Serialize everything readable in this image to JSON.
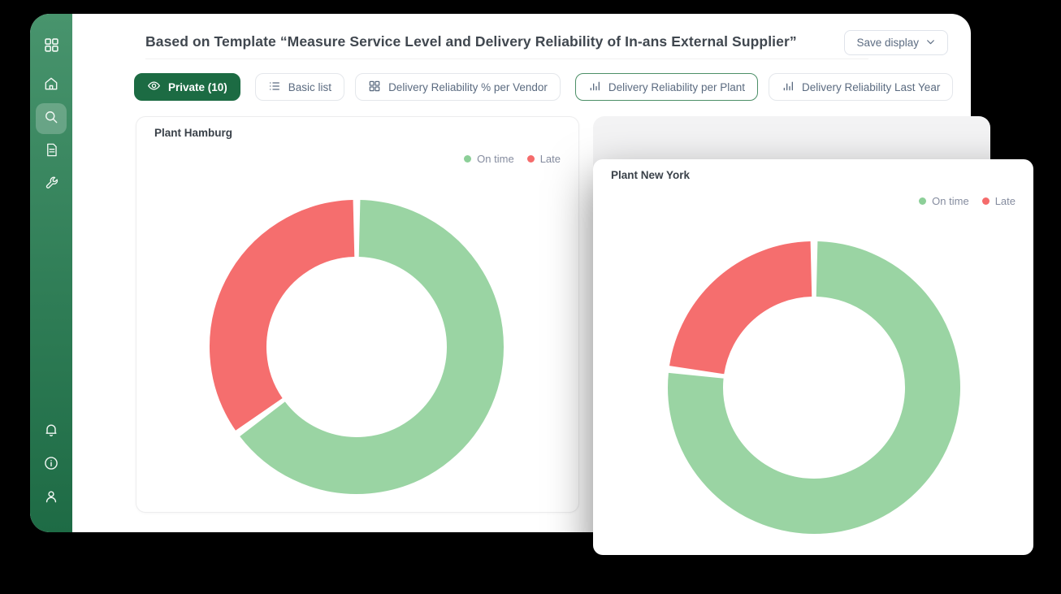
{
  "header": {
    "title": "Based on Template “Measure Service Level and Delivery Reliability of In-ans External Supplier”",
    "save_display_label": "Save display"
  },
  "sidebar": {
    "items": [
      {
        "icon": "apps-grid-icon",
        "active": false
      },
      {
        "icon": "home-icon",
        "active": false
      },
      {
        "icon": "search-icon",
        "active": true
      },
      {
        "icon": "document-icon",
        "active": false
      },
      {
        "icon": "wrench-icon",
        "active": false
      },
      {
        "icon": "bell-icon",
        "active": false
      },
      {
        "icon": "info-icon",
        "active": false
      },
      {
        "icon": "user-icon",
        "active": false
      }
    ]
  },
  "filters": {
    "private_label": "Private (10)",
    "tabs": [
      {
        "label": "Basic list",
        "icon": "list-icon",
        "selected": false
      },
      {
        "label": "Delivery Reliability % per Vendor",
        "icon": "grid-icon",
        "selected": false
      },
      {
        "label": "Delivery Reliability per Plant",
        "icon": "bar-chart-icon",
        "selected": true
      },
      {
        "label": "Delivery Reliability Last Year",
        "icon": "bar-chart-icon",
        "selected": false
      }
    ]
  },
  "colors": {
    "sidebar_green_top": "#48946d",
    "sidebar_green_bottom": "#1e6b45",
    "private_pill": "#1c6b43",
    "selected_tab_border": "#4c8f67",
    "on_time_green": "#9ad4a3",
    "late_red": "#f56e6e",
    "legend_text": "#858c9f"
  },
  "chart_data": [
    {
      "type": "pie",
      "donut": true,
      "title": "Plant Hamburg",
      "labels": [
        "On time",
        "Late"
      ],
      "values": [
        65,
        35
      ],
      "units": "percent (estimated from arc angles)",
      "colors": [
        "#9ad4a3",
        "#f56e6e"
      ],
      "legend_position": "top-right",
      "start_angle_deg": 0,
      "direction": "clockwise"
    },
    {
      "type": "pie",
      "donut": true,
      "title": "Plant New York",
      "labels": [
        "On time",
        "Late"
      ],
      "values": [
        77,
        23
      ],
      "units": "percent (estimated from arc angles)",
      "colors": [
        "#9ad4a3",
        "#f56e6e"
      ],
      "legend_position": "top-right",
      "start_angle_deg": 0,
      "direction": "clockwise"
    }
  ]
}
